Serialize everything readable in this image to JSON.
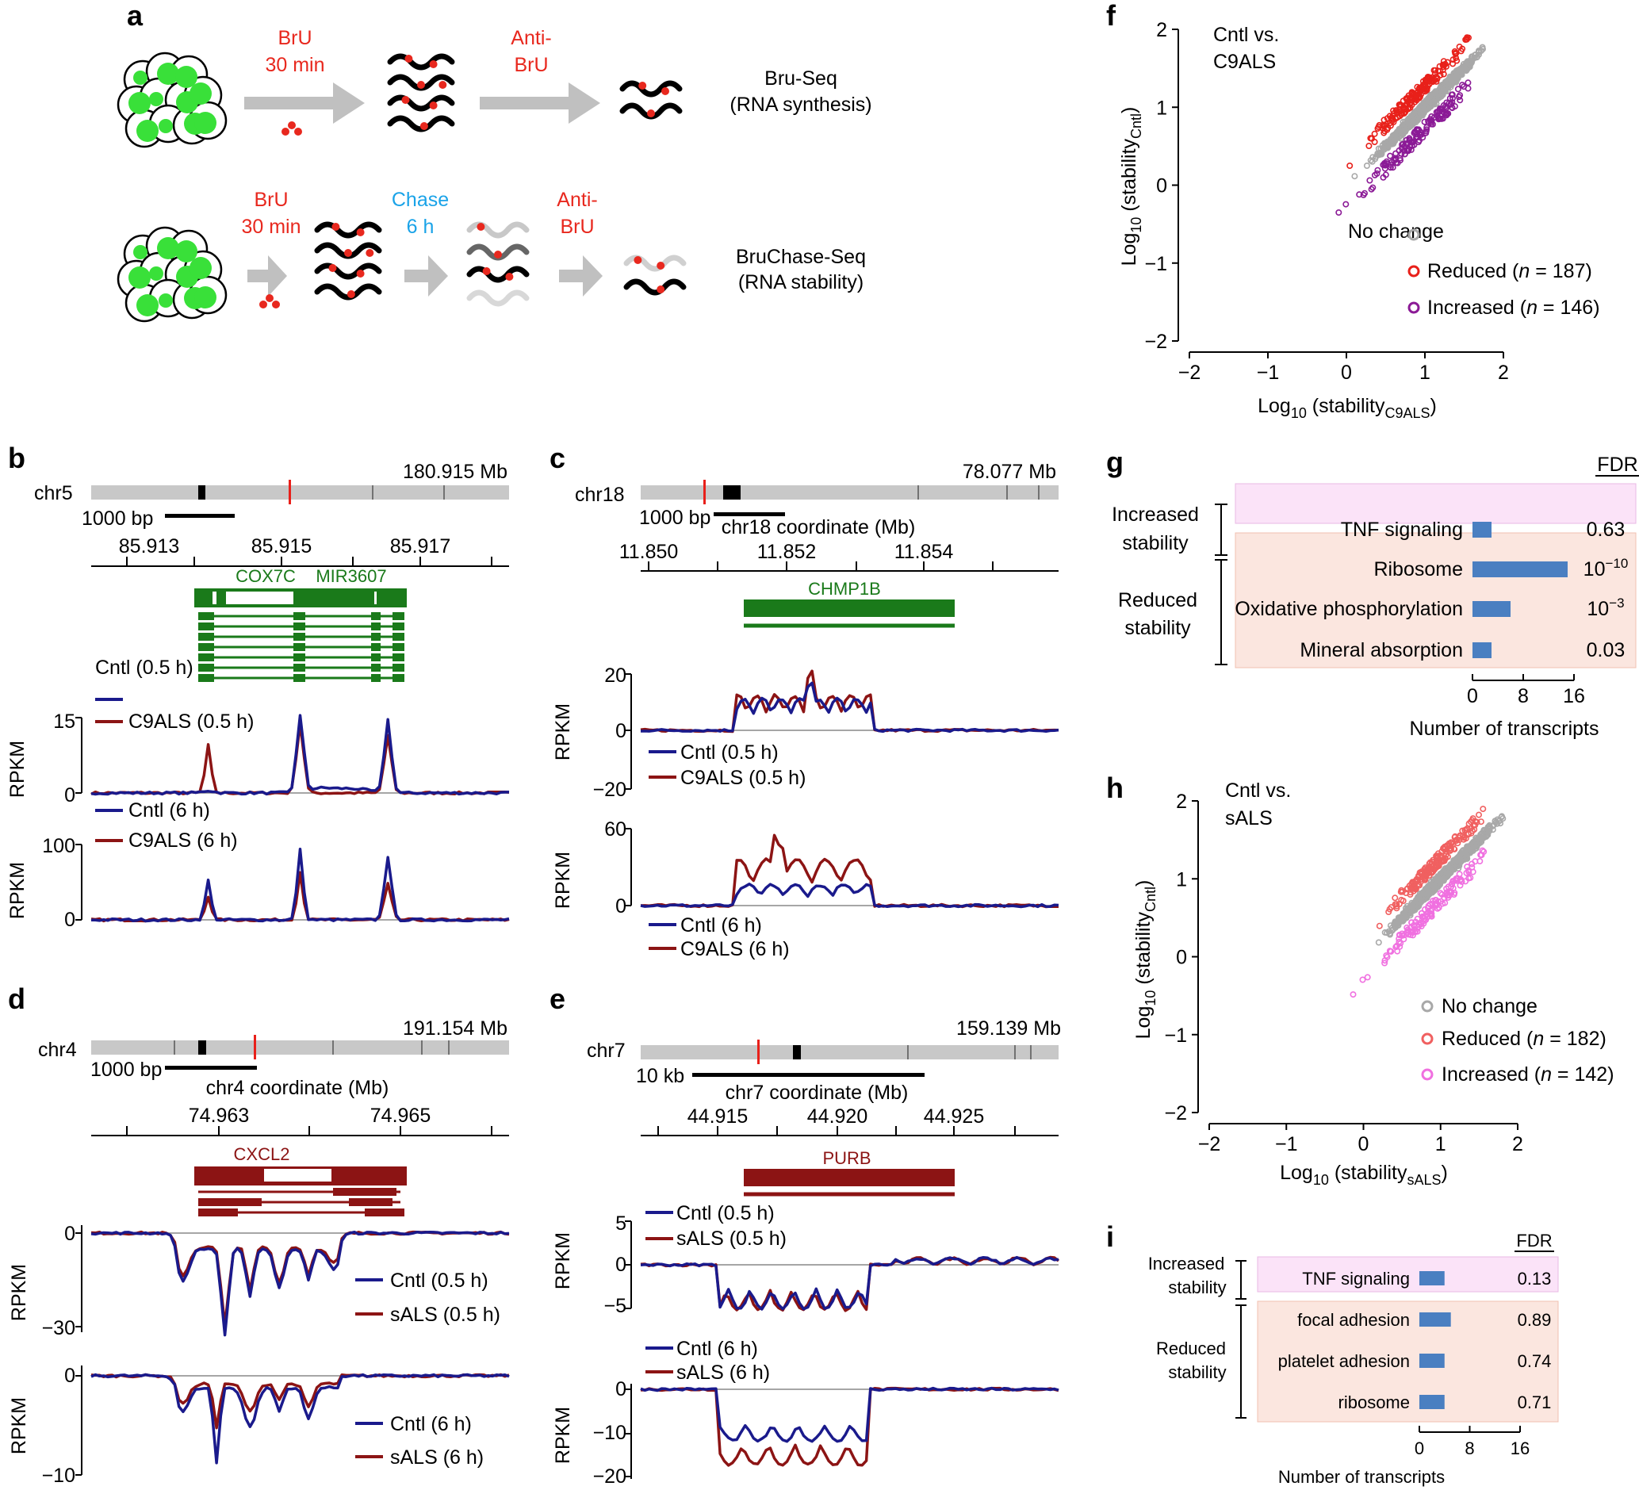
{
  "panel_a": {
    "letter": "a",
    "row1": {
      "step1": [
        "BrU",
        "30 min"
      ],
      "step2": [
        "Anti-",
        "BrU"
      ],
      "result": [
        "Bru-Seq",
        "(RNA synthesis)"
      ]
    },
    "row2": {
      "step1": [
        "BrU",
        "30 min"
      ],
      "step2": [
        "Chase",
        "6 h"
      ],
      "step3": [
        "Anti-",
        "BrU"
      ],
      "result": [
        "BruChase-Seq",
        "(RNA stability)"
      ]
    },
    "colors": {
      "bru": "#e8281e",
      "chase": "#1aa3e8",
      "cell_green": "#39e039",
      "arrow": "#c0c0c0"
    }
  },
  "panel_b": {
    "letter": "b",
    "chrom": "chr5",
    "chrom_size": "180.915 Mb",
    "scale_bar": "1000 bp",
    "ticks": [
      "85.913",
      "85.915",
      "85.917"
    ],
    "genes": [
      "COX7C",
      "MIR3607"
    ],
    "track1": {
      "y_ticks": [
        "15",
        "0"
      ],
      "ylabel": "RPKM",
      "legend": [
        "Cntl (0.5 h)",
        "C9ALS (0.5 h)"
      ]
    },
    "track2": {
      "y_ticks": [
        "100",
        "0"
      ],
      "ylabel": "RPKM",
      "legend": [
        "Cntl (6 h)",
        "C9ALS (6 h)"
      ]
    }
  },
  "panel_c": {
    "letter": "c",
    "chrom": "chr18",
    "chrom_size": "78.077 Mb",
    "scale_bar": "1000 bp",
    "coord_label": "chr18 coordinate (Mb)",
    "ticks": [
      "11.850",
      "11.852",
      "11.854"
    ],
    "genes": [
      "CHMP1B"
    ],
    "track1": {
      "y_ticks": [
        "20",
        "0",
        "−20"
      ],
      "ylabel": "RPKM",
      "legend": [
        "Cntl (0.5 h)",
        "C9ALS (0.5 h)"
      ]
    },
    "track2": {
      "y_ticks": [
        "60",
        "0"
      ],
      "ylabel": "RPKM",
      "legend": [
        "Cntl (6 h)",
        "C9ALS (6 h)"
      ]
    }
  },
  "panel_d": {
    "letter": "d",
    "chrom": "chr4",
    "chrom_size": "191.154 Mb",
    "scale_bar": "1000 bp",
    "coord_label": "chr4 coordinate (Mb)",
    "ticks": [
      "74.963",
      "74.965"
    ],
    "genes": [
      "CXCL2"
    ],
    "track1": {
      "y_ticks": [
        "0",
        "−30"
      ],
      "ylabel": "RPKM",
      "legend": [
        "Cntl (0.5 h)",
        "sALS (0.5 h)"
      ]
    },
    "track2": {
      "y_ticks": [
        "0",
        "−10"
      ],
      "ylabel": "RPKM",
      "legend": [
        "Cntl (6 h)",
        "sALS (6 h)"
      ]
    }
  },
  "panel_e": {
    "letter": "e",
    "chrom": "chr7",
    "chrom_size": "159.139 Mb",
    "scale_bar": "10 kb",
    "coord_label": "chr7 coordinate (Mb)",
    "ticks": [
      "44.915",
      "44.920",
      "44.925"
    ],
    "genes": [
      "PURB"
    ],
    "track1": {
      "y_ticks": [
        "5",
        "0",
        "−5"
      ],
      "ylabel": "RPKM",
      "legend": [
        "Cntl (0.5 h)",
        "sALS (0.5 h)"
      ]
    },
    "track2": {
      "y_ticks": [
        "0",
        "−10",
        "−20"
      ],
      "ylabel": "RPKM",
      "legend": [
        "Cntl (6 h)",
        "sALS (6 h)"
      ]
    }
  },
  "panel_f": {
    "letter": "f",
    "title": [
      "Cntl vs.",
      "C9ALS"
    ],
    "xlabel": {
      "pre": "Log",
      "sub": "10",
      "mid": " (stability",
      "sub2": "C9ALS",
      "post": ")"
    },
    "ylabel": {
      "pre": "Log",
      "sub": "10",
      "mid": " (stability",
      "sub2": "Cntl",
      "post": ")"
    },
    "x_ticks": [
      "−2",
      "−1",
      "0",
      "1",
      "2"
    ],
    "y_ticks": [
      "2",
      "1",
      "0",
      "−1",
      "−2"
    ],
    "legend": {
      "nochange": "No change",
      "reduced": "Reduced",
      "reduced_n": "187",
      "increased": "Increased",
      "increased_n": "146"
    }
  },
  "panel_g": {
    "letter": "g",
    "fdr_header": "FDR",
    "group1": [
      "Increased",
      "stability"
    ],
    "group2": [
      "Reduced",
      "stability"
    ],
    "terms": [
      "TNF signaling",
      "Ribosome",
      "Oxidative phosphorylation",
      "Mineral absorption"
    ],
    "fdr": [
      {
        "base": "0.63",
        "exp": ""
      },
      {
        "base": "10",
        "exp": "−10"
      },
      {
        "base": "10",
        "exp": "−3"
      },
      {
        "base": "0.03",
        "exp": ""
      }
    ],
    "x_ticks": [
      "0",
      "8",
      "16"
    ],
    "xlabel": "Number of transcripts"
  },
  "panel_h": {
    "letter": "h",
    "title": [
      "Cntl vs.",
      "sALS"
    ],
    "xlabel": {
      "pre": "Log",
      "sub": "10",
      "mid": " (stability",
      "sub2": "sALS",
      "post": ")"
    },
    "ylabel": {
      "pre": "Log",
      "sub": "10",
      "mid": " (stability",
      "sub2": "Cntl",
      "post": ")"
    },
    "x_ticks": [
      "−2",
      "−1",
      "0",
      "1",
      "2"
    ],
    "y_ticks": [
      "2",
      "1",
      "0",
      "−1",
      "−2"
    ],
    "legend": {
      "nochange": "No change",
      "reduced": "Reduced",
      "reduced_n": "182",
      "increased": "Increased",
      "increased_n": "142"
    }
  },
  "panel_i": {
    "letter": "i",
    "fdr_header": "FDR",
    "group1": [
      "Increased",
      "stability"
    ],
    "group2": [
      "Reduced",
      "stability"
    ],
    "terms": [
      "TNF signaling",
      "focal adhesion",
      "platelet adhesion",
      "ribosome"
    ],
    "fdr": [
      "0.13",
      "0.89",
      "0.74",
      "0.71"
    ],
    "x_ticks": [
      "0",
      "8",
      "16"
    ],
    "xlabel": "Number of transcripts"
  },
  "chart_data": [
    {
      "type": "scatter",
      "panel": "f",
      "xlim": [
        -2,
        2
      ],
      "ylim": [
        -2,
        2
      ],
      "series": [
        {
          "name": "No change"
        },
        {
          "name": "Reduced",
          "n": 187
        },
        {
          "name": "Increased",
          "n": 146
        }
      ],
      "colors": {
        "nochange": "#a8a8a8",
        "reduced": "#e8201a",
        "increased": "#8b1a96"
      }
    },
    {
      "type": "bar",
      "panel": "g",
      "categories": [
        "TNF signaling",
        "Ribosome",
        "Oxidative phosphorylation",
        "Mineral absorption"
      ],
      "values": [
        3,
        15,
        6,
        3
      ],
      "xlim": [
        0,
        16
      ],
      "xlabel": "Number of transcripts",
      "bar_color": "#4a7fc1"
    },
    {
      "type": "scatter",
      "panel": "h",
      "xlim": [
        -2,
        2
      ],
      "ylim": [
        -2,
        2
      ],
      "series": [
        {
          "name": "No change"
        },
        {
          "name": "Reduced",
          "n": 182
        },
        {
          "name": "Increased",
          "n": 142
        }
      ],
      "colors": {
        "nochange": "#a8a8a8",
        "reduced": "#f06060",
        "increased": "#f070e0"
      }
    },
    {
      "type": "bar",
      "panel": "i",
      "categories": [
        "TNF signaling",
        "focal adhesion",
        "platelet adhesion",
        "ribosome"
      ],
      "values": [
        4,
        5,
        4,
        4
      ],
      "xlim": [
        0,
        16
      ],
      "xlabel": "Number of transcripts",
      "bar_color": "#4a7fc1"
    }
  ],
  "colors": {
    "cntl": "#1a1a8c",
    "case": "#8c1414",
    "gene_green": "#1a7a1a",
    "gene_red": "#8c1414",
    "ideogram": "#c8c8c8",
    "pink_band": "#fbe3f8",
    "salmon_band": "#fbe6df"
  }
}
